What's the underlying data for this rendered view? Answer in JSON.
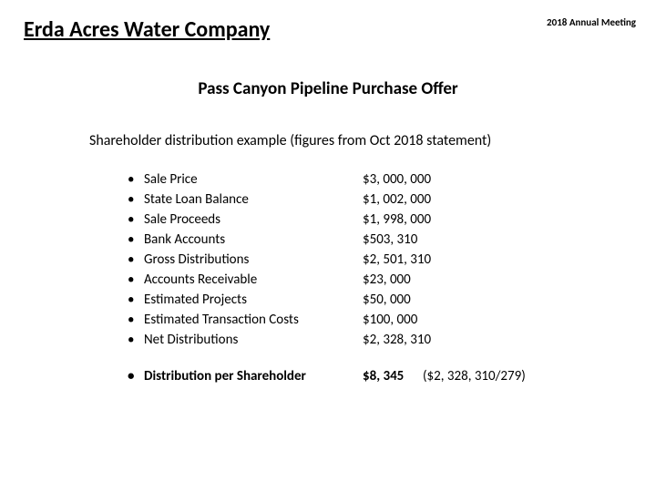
{
  "header": {
    "company": "Erda Acres Water Company",
    "meeting": "2018 Annual Meeting"
  },
  "title": "Pass Canyon Pipeline Purchase Offer",
  "subtitle": "Shareholder distribution example (figures from Oct 2018 statement)",
  "items": [
    {
      "label": "Sale Price",
      "value": "$3, 000, 000"
    },
    {
      "label": "State Loan Balance",
      "value": "$1, 002, 000"
    },
    {
      "label": "Sale Proceeds",
      "value": "$1, 998, 000"
    },
    {
      "label": "Bank Accounts",
      "value": "$503, 310"
    },
    {
      "label": "Gross Distributions",
      "value": "$2, 501, 310"
    },
    {
      "label": "Accounts Receivable",
      "value": "$23, 000"
    },
    {
      "label": "Estimated Projects",
      "value": "$50, 000"
    },
    {
      "label": "Estimated Transaction Costs",
      "value": "$100, 000"
    },
    {
      "label": "Net Distributions",
      "value": "$2, 328, 310"
    }
  ],
  "summary": {
    "label": "Distribution per Shareholder",
    "value": "$8, 345",
    "calc": "($2, 328, 310/279)"
  },
  "style": {
    "background": "#ffffff",
    "text_color": "#000000",
    "company_fontsize": 24,
    "title_fontsize": 19,
    "body_fontsize": 15,
    "meeting_fontsize": 11
  }
}
